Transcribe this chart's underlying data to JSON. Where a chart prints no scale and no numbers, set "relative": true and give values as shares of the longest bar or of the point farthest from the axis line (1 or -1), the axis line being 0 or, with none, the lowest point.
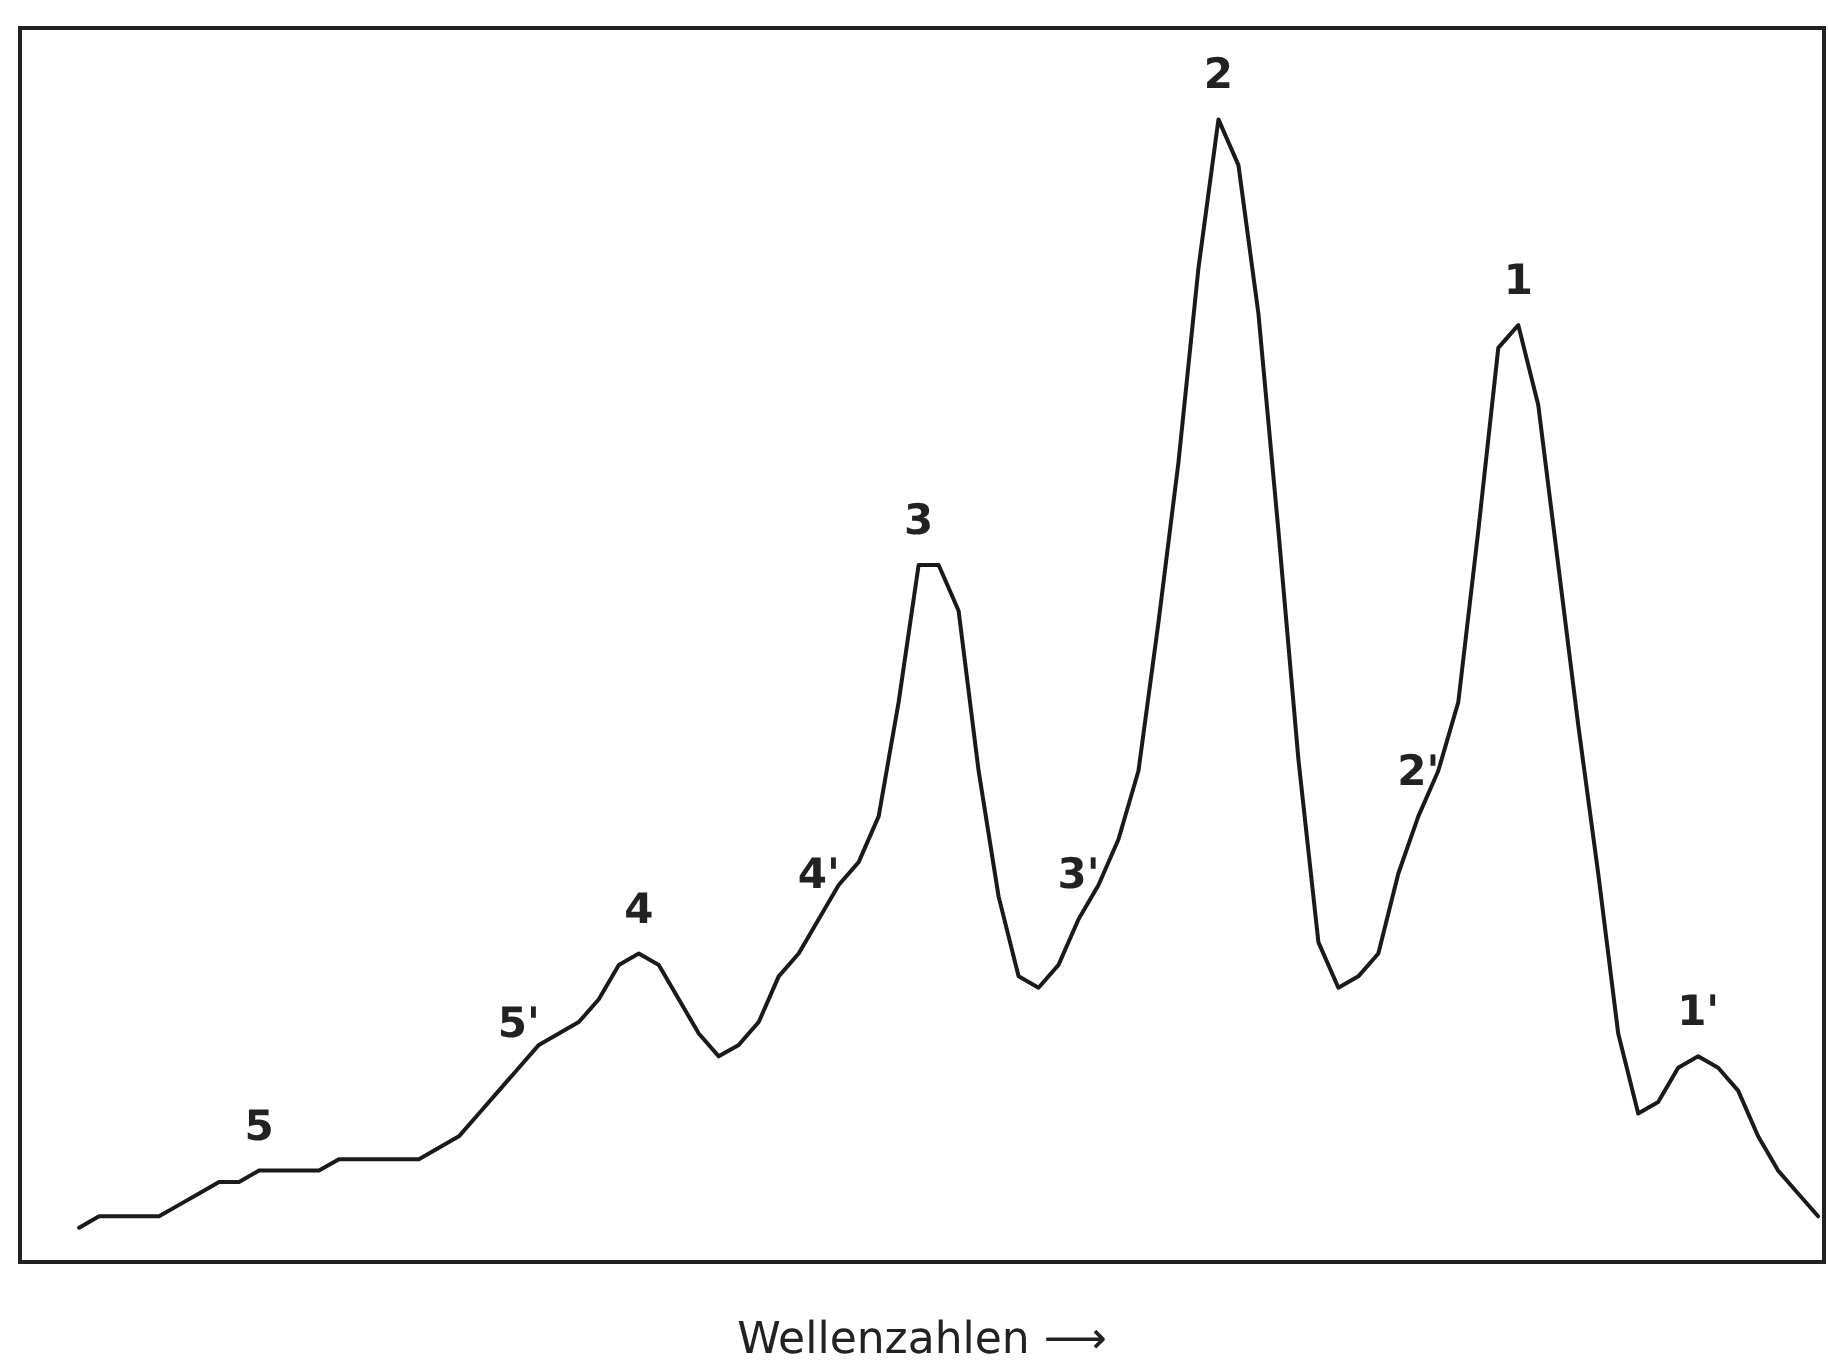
{
  "chart_data": {
    "type": "line",
    "relative": true,
    "xlabel": "Wellenzahlen ⟶",
    "color": "#1a1a1a",
    "line_style": "solid",
    "grid": false,
    "annotations": [
      {
        "text": "5",
        "y": 0.08
      },
      {
        "text": "5'",
        "y": 0.17
      },
      {
        "text": "4",
        "y": 0.27
      },
      {
        "text": "4'",
        "y": 0.3
      },
      {
        "text": "3",
        "y": 0.61
      },
      {
        "text": "3'",
        "y": 0.3
      },
      {
        "text": "2",
        "y": 1
      },
      {
        "text": "2'",
        "y": 0.39
      },
      {
        "text": "1",
        "y": 0.82
      },
      {
        "text": "1'",
        "y": 0.18
      }
    ],
    "categories": [
      null,
      null,
      null,
      null,
      null,
      null,
      null,
      null,
      null,
      null,
      null,
      null,
      null,
      null,
      null,
      null,
      null,
      null,
      null,
      null,
      null,
      null,
      null,
      null,
      null,
      null,
      null,
      null,
      null,
      null,
      null,
      null,
      null,
      null,
      null,
      null,
      null,
      null,
      null,
      null,
      null,
      null,
      null,
      null,
      null,
      null,
      null,
      null,
      null,
      null,
      null,
      null,
      null,
      null,
      null,
      null,
      null,
      null,
      null,
      null,
      null,
      null,
      null,
      null,
      null,
      null,
      null,
      null,
      null,
      null,
      null,
      null,
      null,
      null,
      null,
      null,
      null,
      null,
      null,
      null,
      null,
      null,
      null,
      null,
      null,
      null,
      null,
      null
    ],
    "values": [
      0.03,
      0.04,
      0.04,
      0.04,
      0.04,
      0.05,
      0.06,
      0.07,
      0.07,
      0.08,
      0.08,
      0.08,
      0.08,
      0.09,
      0.09,
      0.09,
      0.09,
      0.09,
      0.1,
      0.11,
      0.13,
      0.15,
      0.17,
      0.19,
      0.2,
      0.21,
      0.23,
      0.26,
      0.27,
      0.26,
      0.23,
      0.2,
      0.18,
      0.19,
      0.21,
      0.25,
      0.27,
      0.3,
      0.33,
      0.35,
      0.39,
      0.49,
      0.61,
      0.61,
      0.57,
      0.43,
      0.32,
      0.25,
      0.24,
      0.26,
      0.3,
      0.33,
      0.37,
      0.43,
      0.56,
      0.7,
      0.87,
      1,
      0.96,
      0.83,
      0.64,
      0.44,
      0.28,
      0.24,
      0.25,
      0.27,
      0.34,
      0.39,
      0.43,
      0.49,
      0.64,
      0.8,
      0.82,
      0.75,
      0.61,
      0.47,
      0.34,
      0.2,
      0.13,
      0.14,
      0.17,
      0.18,
      0.17,
      0.15,
      0.11,
      0.08,
      0.06,
      0.04
    ]
  }
}
